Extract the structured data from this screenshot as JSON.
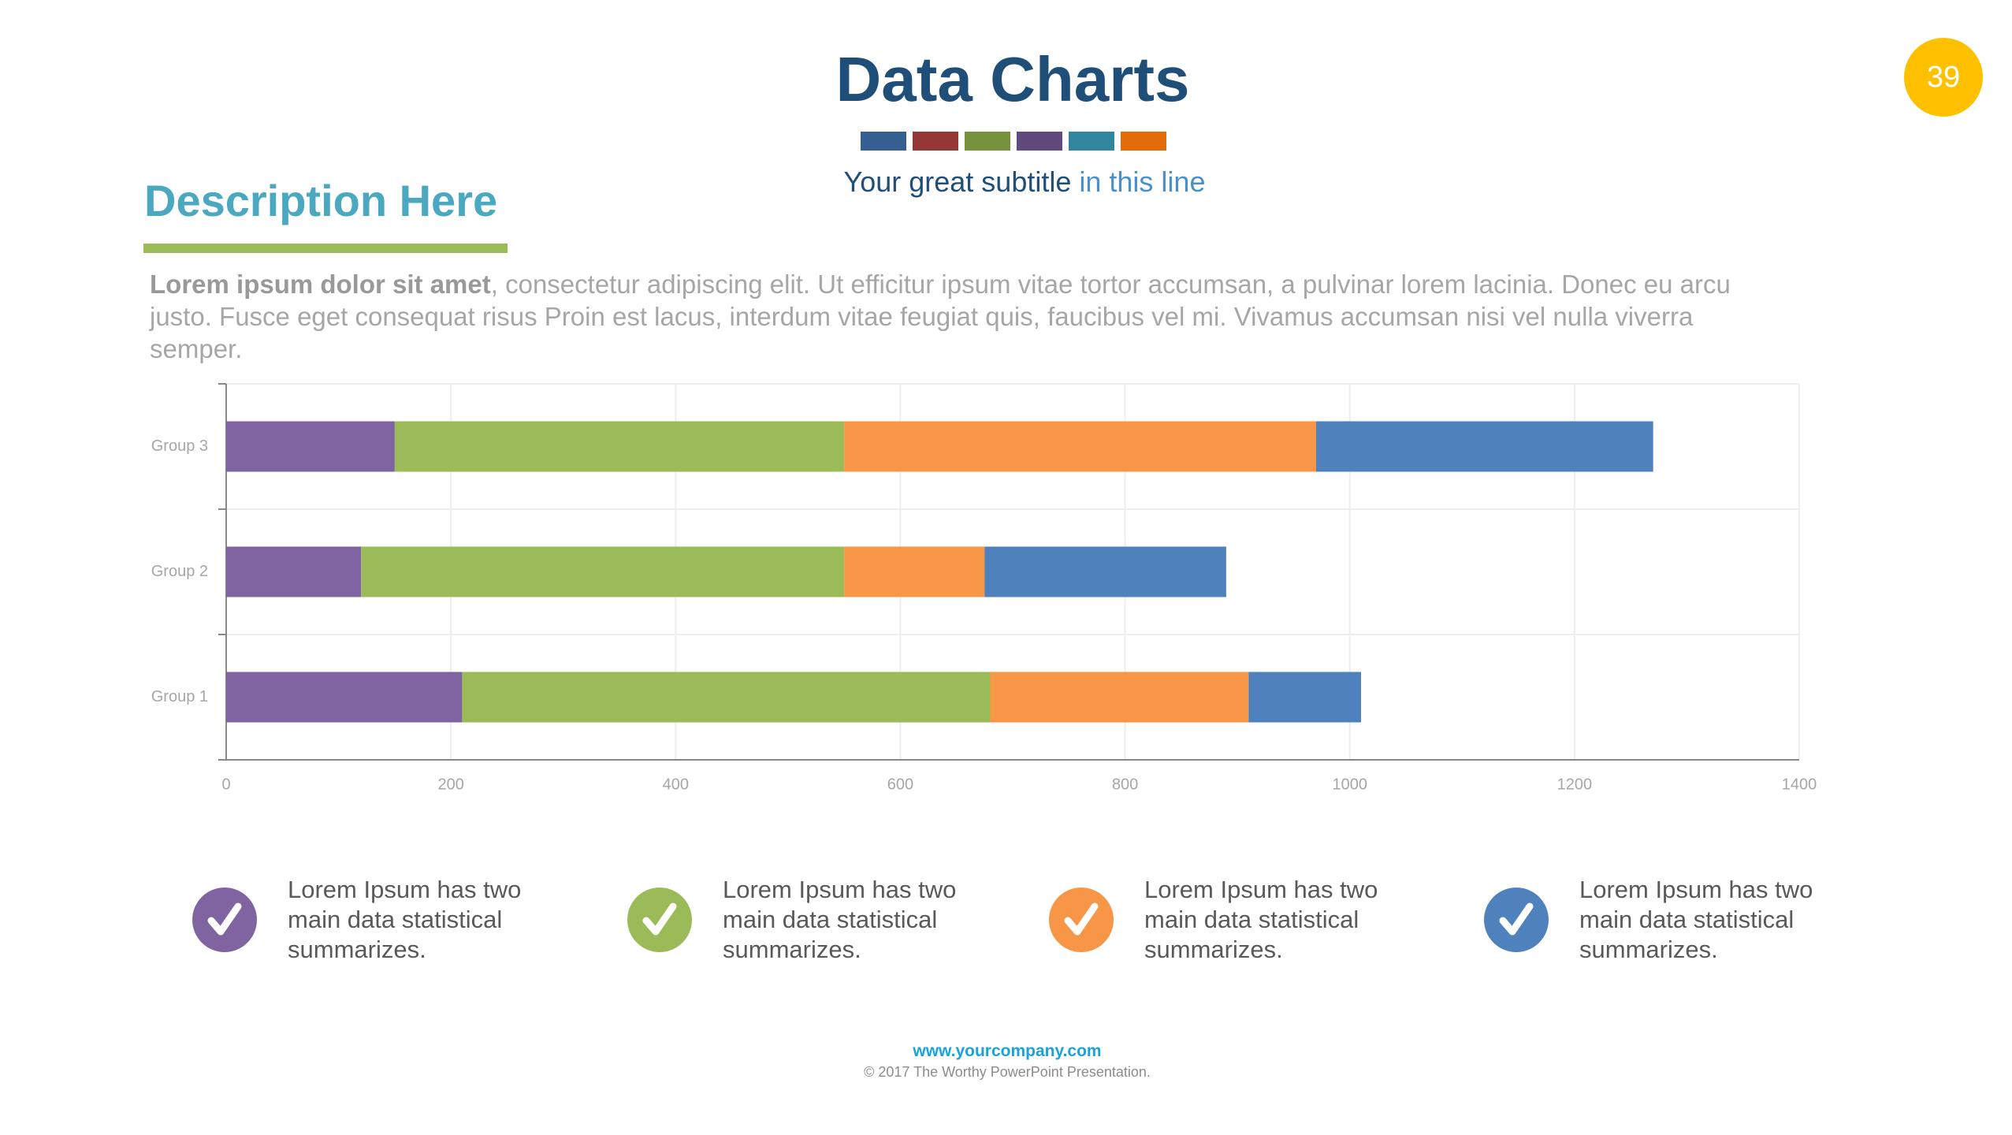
{
  "slide": {
    "title": "Data Charts",
    "subtitle_main": "Your great subtitle",
    "subtitle_accent": "in this line",
    "page_number": "39",
    "section_title": "Description Here",
    "paragraph_bold": "Lorem ipsum dolor sit amet",
    "paragraph_rest": ", consectetur adipiscing elit. Ut efficitur ipsum vitae tortor accumsan, a pulvinar lorem lacinia. Donec eu arcu justo. Fusce eget consequat risus Proin est lacus, interdum vitae feugiat quis, faucibus vel mi.  Vivamus accumsan nisi vel nulla viverra semper.",
    "features": [
      {
        "text": "Lorem Ipsum has two main data statistical summarizes.",
        "color": "#8064a2"
      },
      {
        "text": "Lorem Ipsum has two main data statistical summarizes.",
        "color": "#9bbb59"
      },
      {
        "text": "Lorem Ipsum has two main data statistical summarizes.",
        "color": "#f79646"
      },
      {
        "text": "Lorem Ipsum has two main data statistical summarizes.",
        "color": "#4f81bd"
      }
    ],
    "footer_url": "www.yourcompany.com",
    "footer_copyright": "© 2017 The Worthy PowerPoint Presentation."
  },
  "chart_data": {
    "type": "stacked_bar_horizontal",
    "categories": [
      "Group 1",
      "Group 2",
      "Group 3"
    ],
    "series": [
      {
        "color": "#8064a2",
        "values": [
          210,
          120,
          150
        ]
      },
      {
        "color": "#9bbb59",
        "values": [
          470,
          430,
          400
        ]
      },
      {
        "color": "#f79646",
        "values": [
          230,
          125,
          420
        ]
      },
      {
        "color": "#4f81bd",
        "values": [
          100,
          215,
          300
        ]
      }
    ],
    "xlim": [
      0,
      1400
    ],
    "xticks": [
      0,
      200,
      400,
      600,
      800,
      1000,
      1200,
      1400
    ],
    "grid": true
  }
}
